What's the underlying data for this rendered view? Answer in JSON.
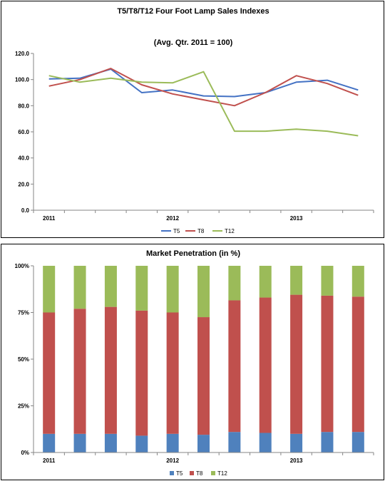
{
  "chart_data": [
    {
      "type": "line",
      "title": "T5/T8/T12 Four Foot Lamp Sales Indexes",
      "subtitle": "(Avg. Qtr. 2011 = 100)",
      "xlabel": "",
      "ylabel": "",
      "x_labels": [
        "2011",
        "2012",
        "2013"
      ],
      "y_ticks": [
        "0.0",
        "20.0",
        "40.0",
        "60.0",
        "80.0",
        "100.0",
        "120.0"
      ],
      "ylim": [
        0,
        120
      ],
      "legend_position": "bottom",
      "grid": "horizontal",
      "series": [
        {
          "name": "T5",
          "color": "#4472c4",
          "values": [
            100.5,
            101,
            108,
            90,
            92,
            87.5,
            87,
            90,
            98,
            99.5,
            92
          ]
        },
        {
          "name": "T8",
          "color": "#c0504d",
          "values": [
            95,
            100,
            108.5,
            96,
            89,
            84.5,
            80,
            90,
            103,
            97,
            88
          ]
        },
        {
          "name": "T12",
          "color": "#9bbb59",
          "values": [
            103,
            98,
            101,
            98,
            97.5,
            106,
            60.5,
            60.5,
            62,
            60.5,
            57
          ]
        }
      ]
    },
    {
      "type": "bar",
      "stacked": true,
      "title": "Market Penetration (in %)",
      "xlabel": "",
      "ylabel": "",
      "x_labels": [
        "2011",
        "2012",
        "2013"
      ],
      "y_ticks": [
        "0%",
        "25%",
        "50%",
        "75%",
        "100%"
      ],
      "ylim": [
        0,
        100
      ],
      "legend_position": "bottom",
      "grid": "horizontal",
      "series": [
        {
          "name": "T5",
          "color": "#4f81bd",
          "values": [
            10,
            10,
            10,
            9,
            10,
            9.5,
            11,
            10.5,
            10,
            11,
            11
          ]
        },
        {
          "name": "T8",
          "color": "#c0504d",
          "values": [
            65,
            67,
            68,
            67,
            65,
            63,
            70.5,
            72.5,
            74.5,
            73,
            72.5
          ]
        },
        {
          "name": "T12",
          "color": "#9bbb59",
          "values": [
            25,
            23,
            22,
            24,
            25,
            27.5,
            18.5,
            17,
            15.5,
            16,
            16.5
          ]
        }
      ]
    }
  ]
}
